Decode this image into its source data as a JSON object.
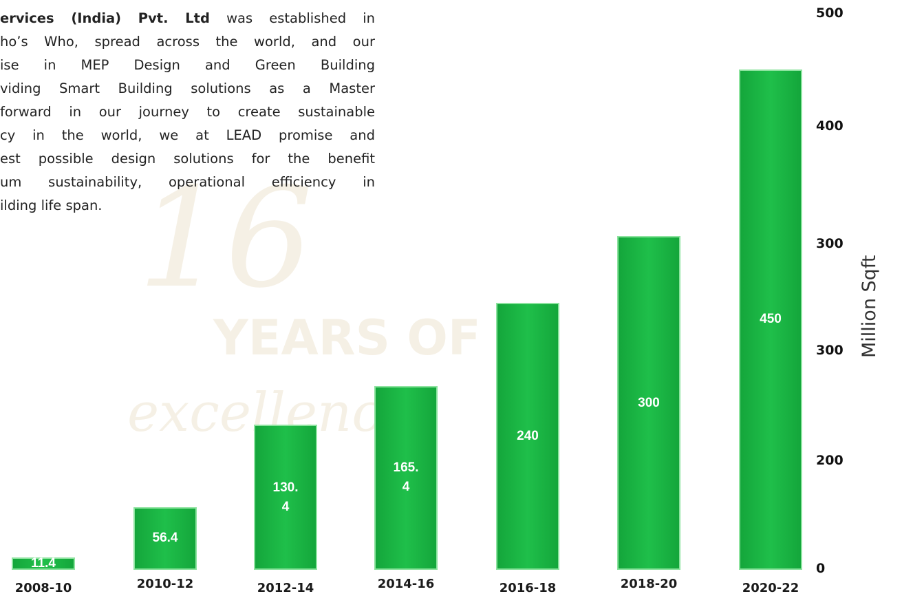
{
  "intro": {
    "bold": "ervices (India) Pvt. Ltd",
    "lines": [
      " was established in",
      "ho’s Who, spread across the world, and our",
      "ise in MEP Design and Green Building",
      "viding Smart Building solutions as a Master",
      "forward in our journey to create sustainable",
      "cy in the world, we at LEAD promise and",
      "est possible design solutions for the benefit",
      "um sustainability, operational efficiency in",
      "ilding life span."
    ]
  },
  "watermark": {
    "number": "16",
    "line1": "YEARS OF",
    "line2": "excellenc"
  },
  "chart_data": {
    "type": "bar",
    "y_label": "Million Sqft",
    "categories": [
      "2008-10",
      "2010-12",
      "2012-14",
      "2014-16",
      "2016-18",
      "2018-20",
      "2020-22"
    ],
    "values": [
      11.4,
      56.4,
      130.4,
      165.4,
      240,
      300,
      450
    ],
    "color": "#1fbf4a",
    "ylim": [
      0,
      500
    ],
    "y_axis_labels": [
      "500",
      "400",
      "300",
      "300",
      "200",
      "0"
    ]
  }
}
